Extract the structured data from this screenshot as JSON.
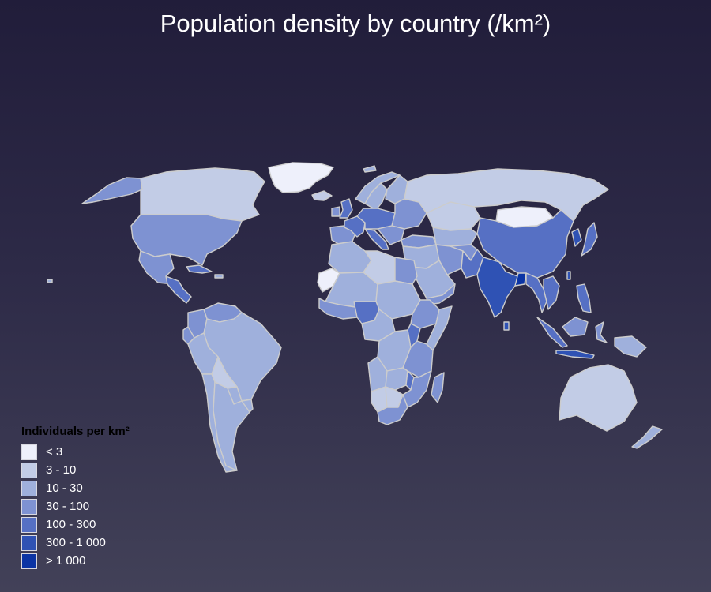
{
  "map": {
    "title": "Population density by country (/km²)",
    "border_color": "#cccccc",
    "legend": {
      "title": "Individuals per km²",
      "classes": [
        {
          "label": "< 3",
          "color": "#eef0fb"
        },
        {
          "label": "3 - 10",
          "color": "#c2cce6"
        },
        {
          "label": "10 - 30",
          "color": "#9fb0dc"
        },
        {
          "label": "30 - 100",
          "color": "#7e92d2"
        },
        {
          "label": "100 - 300",
          "color": "#5670c4"
        },
        {
          "label": "300 - 1 000",
          "color": "#2f52b4"
        },
        {
          "label": "> 1 000",
          "color": "#0b34a4"
        }
      ]
    },
    "regions": [
      {
        "name": "Greenland",
        "density_class": 0
      },
      {
        "name": "Canada",
        "density_class": 1
      },
      {
        "name": "Alaska",
        "density_class": 3
      },
      {
        "name": "United States",
        "density_class": 3
      },
      {
        "name": "Mexico",
        "density_class": 3
      },
      {
        "name": "Central America",
        "density_class": 4
      },
      {
        "name": "Cuba",
        "density_class": 4
      },
      {
        "name": "Venezuela",
        "density_class": 3
      },
      {
        "name": "Colombia",
        "density_class": 3
      },
      {
        "name": "Ecuador",
        "density_class": 3
      },
      {
        "name": "Peru",
        "density_class": 2
      },
      {
        "name": "Brazil",
        "density_class": 2
      },
      {
        "name": "Bolivia",
        "density_class": 1
      },
      {
        "name": "Paraguay",
        "density_class": 2
      },
      {
        "name": "Chile",
        "density_class": 2
      },
      {
        "name": "Argentina",
        "density_class": 2
      },
      {
        "name": "Uruguay",
        "density_class": 2
      },
      {
        "name": "Iceland",
        "density_class": 1
      },
      {
        "name": "Norway",
        "density_class": 2
      },
      {
        "name": "Sweden",
        "density_class": 2
      },
      {
        "name": "Finland",
        "density_class": 2
      },
      {
        "name": "United Kingdom",
        "density_class": 4
      },
      {
        "name": "Ireland",
        "density_class": 3
      },
      {
        "name": "Iberia",
        "density_class": 3
      },
      {
        "name": "France",
        "density_class": 4
      },
      {
        "name": "Central Europe",
        "density_class": 4
      },
      {
        "name": "Eastern Europe",
        "density_class": 3
      },
      {
        "name": "Italy",
        "density_class": 4
      },
      {
        "name": "Balkans",
        "density_class": 3
      },
      {
        "name": "Turkey",
        "density_class": 3
      },
      {
        "name": "Russia",
        "density_class": 1
      },
      {
        "name": "Kazakhstan",
        "density_class": 1
      },
      {
        "name": "Mongolia",
        "density_class": 0
      },
      {
        "name": "China",
        "density_class": 4
      },
      {
        "name": "Korea",
        "density_class": 5
      },
      {
        "name": "Japan",
        "density_class": 4
      },
      {
        "name": "Central Asia",
        "density_class": 2
      },
      {
        "name": "Middle East",
        "density_class": 2
      },
      {
        "name": "Saudi Arabia",
        "density_class": 2
      },
      {
        "name": "Yemen",
        "density_class": 3
      },
      {
        "name": "Iran",
        "density_class": 3
      },
      {
        "name": "Afghanistan",
        "density_class": 3
      },
      {
        "name": "Pakistan",
        "density_class": 4
      },
      {
        "name": "India",
        "density_class": 5
      },
      {
        "name": "Bangladesh",
        "density_class": 6
      },
      {
        "name": "Southeast Asia",
        "density_class": 4
      },
      {
        "name": "Vietnam",
        "density_class": 4
      },
      {
        "name": "Philippines",
        "density_class": 4
      },
      {
        "name": "Sumatra",
        "density_class": 4
      },
      {
        "name": "Java",
        "density_class": 5
      },
      {
        "name": "Borneo",
        "density_class": 3
      },
      {
        "name": "Sulawesi",
        "density_class": 3
      },
      {
        "name": "New Guinea",
        "density_class": 2
      },
      {
        "name": "Australia",
        "density_class": 1
      },
      {
        "name": "New Zealand",
        "density_class": 2
      },
      {
        "name": "Sri Lanka",
        "density_class": 5
      },
      {
        "name": "Taiwan",
        "density_class": 5
      },
      {
        "name": "North Africa",
        "density_class": 2
      },
      {
        "name": "Western Sahara",
        "density_class": 0
      },
      {
        "name": "Sahel",
        "density_class": 2
      },
      {
        "name": "Libya",
        "density_class": 1
      },
      {
        "name": "Egypt",
        "density_class": 3
      },
      {
        "name": "Sudan",
        "density_class": 2
      },
      {
        "name": "West Africa coast",
        "density_class": 3
      },
      {
        "name": "Nigeria",
        "density_class": 4
      },
      {
        "name": "Ethiopia",
        "density_class": 3
      },
      {
        "name": "Somalia",
        "density_class": 2
      },
      {
        "name": "Central Africa",
        "density_class": 2
      },
      {
        "name": "DR Congo",
        "density_class": 2
      },
      {
        "name": "East Africa",
        "density_class": 3
      },
      {
        "name": "Uganda",
        "density_class": 4
      },
      {
        "name": "Angola",
        "density_class": 2
      },
      {
        "name": "Zambia",
        "density_class": 2
      },
      {
        "name": "Malawi",
        "density_class": 4
      },
      {
        "name": "Namibia",
        "density_class": 1
      },
      {
        "name": "Botswana",
        "density_class": 1
      },
      {
        "name": "South Africa",
        "density_class": 3
      },
      {
        "name": "Mozambique",
        "density_class": 3
      },
      {
        "name": "Madagascar",
        "density_class": 3
      }
    ]
  }
}
